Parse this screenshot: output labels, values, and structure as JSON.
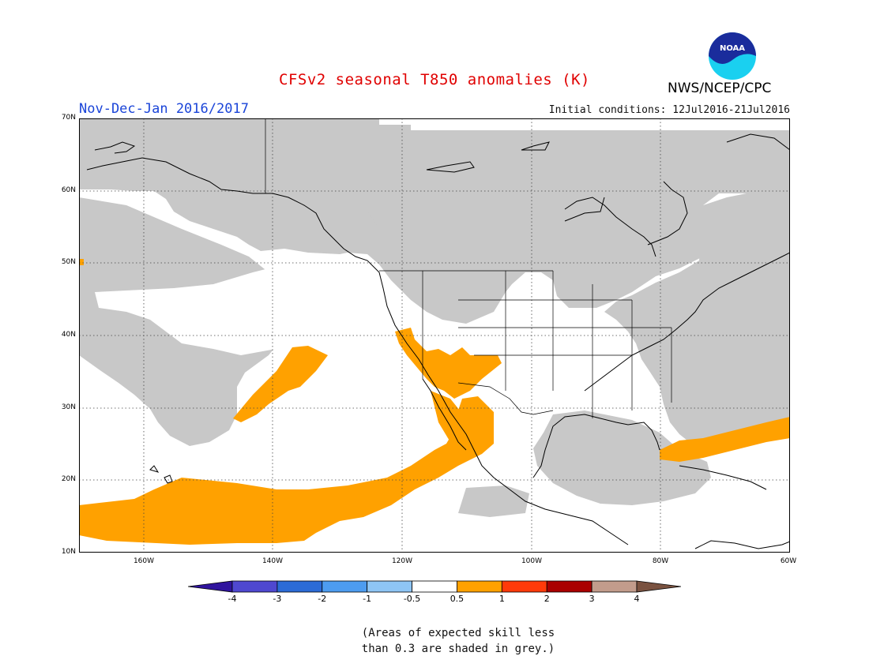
{
  "title": "CFSv2 seasonal T850 anomalies (K)",
  "period": "Nov-Dec-Jan 2016/2017",
  "initial_conditions": "Initial conditions: 12Jul2016-21Jul2016",
  "agency": "NWS/NCEP/CPC",
  "logo_text": "NOAA",
  "lat_labels": [
    "70N",
    "60N",
    "50N",
    "40N",
    "30N",
    "20N",
    "10N"
  ],
  "lon_labels": [
    "160W",
    "140W",
    "120W",
    "100W",
    "80W",
    "60W"
  ],
  "colorbar": {
    "labels": [
      "-4",
      "-3",
      "-2",
      "-1",
      "-0.5",
      "0.5",
      "1",
      "2",
      "3",
      "4"
    ],
    "colors": [
      "#30149e",
      "#4f48d0",
      "#2b6bd6",
      "#4d9cf0",
      "#8ec5f5",
      "#ffffff",
      "#ffa100",
      "#ff3a0a",
      "#aa0000",
      "#c29c8c",
      "#7a5240"
    ]
  },
  "note_line1": "(Areas of expected skill less",
  "note_line2": "than 0.3 are shaded in grey.)",
  "colors": {
    "skill_grey": "#c8c8c8",
    "warm_anomaly": "#ffa100",
    "title_red": "#e00000",
    "period_blue": "#1a44d8"
  }
}
